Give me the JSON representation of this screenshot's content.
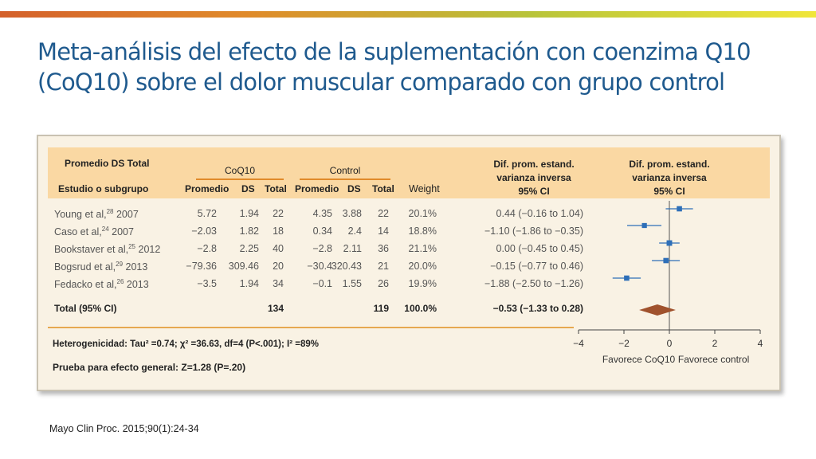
{
  "title_line1": "Meta-análisis del efecto de la suplementación con coenzima Q10",
  "title_line2": "(CoQ10) sobre el dolor muscular comparado con grupo control",
  "table": {
    "header_top_left": "Promedio DS Total",
    "header_study": "Estudio o subgrupo",
    "group_coq10": "CoQ10",
    "group_control": "Control",
    "col_mean": "Promedio",
    "col_sd": "DS",
    "col_total": "Total",
    "col_weight": "Weight",
    "col_effect_l1": "Dif. prom. estand.",
    "col_effect_l2": "varianza inversa",
    "col_effect_l3": "95% CI",
    "plot_header_l1": "Dif. prom. estand.",
    "plot_header_l2": "varianza inversa",
    "plot_header_l3": "95% CI",
    "rows": [
      {
        "study": "Young et al,",
        "ref": "28",
        "year": " 2007",
        "coq_mean": "5.72",
        "coq_sd": "1.94",
        "coq_total": "22",
        "ctl_mean": "4.35",
        "ctl_sd": "3.88",
        "ctl_total": "22",
        "weight": "20.1%",
        "ci": "0.44 (−0.16 to 1.04)"
      },
      {
        "study": "Caso et al,",
        "ref": "24",
        "year": " 2007",
        "coq_mean": "−2.03",
        "coq_sd": "1.82",
        "coq_total": "18",
        "ctl_mean": "0.34",
        "ctl_sd": "2.4",
        "ctl_total": "14",
        "weight": "18.8%",
        "ci": "−1.10 (−1.86 to −0.35)"
      },
      {
        "study": "Bookstaver et al,",
        "ref": "25",
        "year": " 2012",
        "coq_mean": "−2.8",
        "coq_sd": "2.25",
        "coq_total": "40",
        "ctl_mean": "−2.8",
        "ctl_sd": "2.11",
        "ctl_total": "36",
        "weight": "21.1%",
        "ci": "0.00 (−0.45 to 0.45)"
      },
      {
        "study": "Bogsrud et al,",
        "ref": "29",
        "year": " 2013",
        "coq_mean": "−79.36",
        "coq_sd": "309.46",
        "coq_total": "20",
        "ctl_mean": "−30.4",
        "ctl_sd": "320.43",
        "ctl_total": "21",
        "weight": "20.0%",
        "ci": "−0.15 (−0.77 to 0.46)"
      },
      {
        "study": "Fedacko et al,",
        "ref": "26",
        "year": " 2013",
        "coq_mean": "−3.5",
        "coq_sd": "1.94",
        "coq_total": "34",
        "ctl_mean": "−0.1",
        "ctl_sd": "1.55",
        "ctl_total": "26",
        "weight": "19.9%",
        "ci": "−1.88 (−2.50 to −1.26)"
      }
    ],
    "total": {
      "label": "Total (95% CI)",
      "coq_total": "134",
      "ctl_total": "119",
      "weight": "100.0%",
      "ci": "−0.53 (−1.33 to 0.28)"
    },
    "heterogeneity": "Heterogenicidad: Tau² =0.74; χ² =36.63, df=4 (P<.001); I² =89%",
    "overall_effect": "Prueba para efecto general: Z=1.28 (P=.20)"
  },
  "chart_data": {
    "type": "forest",
    "x_ticks": [
      "−4",
      "−2",
      "0",
      "2",
      "4"
    ],
    "xlim": [
      -4,
      4
    ],
    "favors_left": "Favorece CoQ10",
    "favors_right": "Favorece control",
    "studies": [
      {
        "name": "Young et al, 2007",
        "effect": 0.44,
        "lower": -0.16,
        "upper": 1.04,
        "weight": 20.1
      },
      {
        "name": "Caso et al, 2007",
        "effect": -1.1,
        "lower": -1.86,
        "upper": -0.35,
        "weight": 18.8
      },
      {
        "name": "Bookstaver et al, 2012",
        "effect": 0.0,
        "lower": -0.45,
        "upper": 0.45,
        "weight": 21.1
      },
      {
        "name": "Bogsrud et al, 2013",
        "effect": -0.15,
        "lower": -0.77,
        "upper": 0.46,
        "weight": 20.0
      },
      {
        "name": "Fedacko et al, 2013",
        "effect": -1.88,
        "lower": -2.5,
        "upper": -1.26,
        "weight": 19.9
      }
    ],
    "pooled": {
      "effect": -0.53,
      "lower": -1.33,
      "upper": 0.28
    },
    "colors": {
      "marker": "#2e6fb8",
      "diamond": "#a0522d",
      "axis": "#444444"
    }
  },
  "source": "Mayo Clin Proc. 2015;90(1):24-34"
}
